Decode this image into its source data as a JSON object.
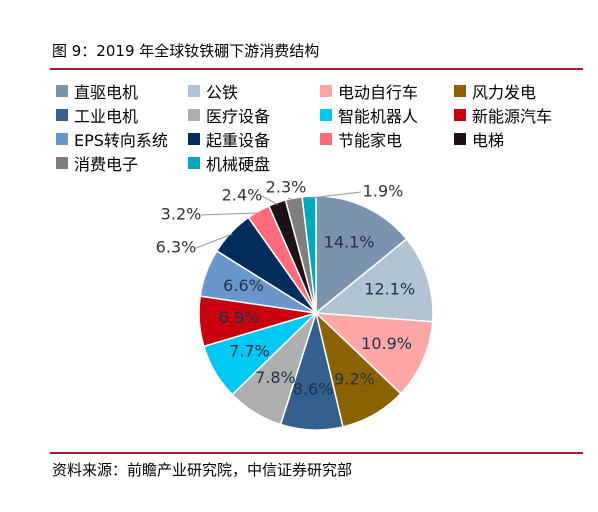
{
  "figure": {
    "title": "图 9：2019 年全球钕铁硼下游消费结构",
    "source": "资料来源：前瞻产业研究院，中信证券研究部"
  },
  "chart_data": {
    "type": "pie",
    "start": "12 o'clock",
    "direction": "clockwise",
    "legend_placement": "top",
    "slices": [
      {
        "label": "直驱电机",
        "value": 14.1,
        "value_label": "14.1%",
        "color": "#7b93ae",
        "label_color": "#1f3246"
      },
      {
        "label": "公铁",
        "value": 12.1,
        "value_label": "12.1%",
        "color": "#b3c3d3",
        "label_color": "#1f3246"
      },
      {
        "label": "电动自行车",
        "value": 10.9,
        "value_label": "10.9%",
        "color": "#ffa6a6",
        "label_color": "#1f3246"
      },
      {
        "label": "风力发电",
        "value": 9.2,
        "value_label": "9.2%",
        "color": "#8b6200",
        "label_color": "#1f3246"
      },
      {
        "label": "工业电机",
        "value": 8.6,
        "value_label": "8.6%",
        "color": "#345f8f",
        "label_color": "#1f3246"
      },
      {
        "label": "医疗设备",
        "value": 7.8,
        "value_label": "7.8%",
        "color": "#aeaeae",
        "label_color": "#1f3246"
      },
      {
        "label": "智能机器人",
        "value": 7.7,
        "value_label": "7.7%",
        "color": "#00c8f5",
        "label_color": "#1f3246"
      },
      {
        "label": "新能源汽车",
        "value": 6.9,
        "value_label": "6.9%",
        "color": "#c8000f",
        "label_color": "#1f3246"
      },
      {
        "label": "EPS转向系统",
        "value": 6.6,
        "value_label": "6.6%",
        "color": "#6a97cb",
        "label_color": "#1f3246"
      },
      {
        "label": "起重设备",
        "value": 6.3,
        "value_label": "6.3%",
        "color": "#002d5c",
        "label_color": "#333333"
      },
      {
        "label": "节能家电",
        "value": 3.2,
        "value_label": "3.2%",
        "color": "#ff6b7b",
        "label_color": "#333333"
      },
      {
        "label": "电梯",
        "value": 2.4,
        "value_label": "2.4%",
        "color": "#1c1414",
        "label_color": "#333333"
      },
      {
        "label": "消费电子",
        "value": 2.3,
        "value_label": "2.3%",
        "color": "#7e7e7e",
        "label_color": "#333333"
      },
      {
        "label": "机械硬盘",
        "value": 1.9,
        "value_label": "1.9%",
        "color": "#00a8bd",
        "label_color": "#333333"
      }
    ]
  }
}
